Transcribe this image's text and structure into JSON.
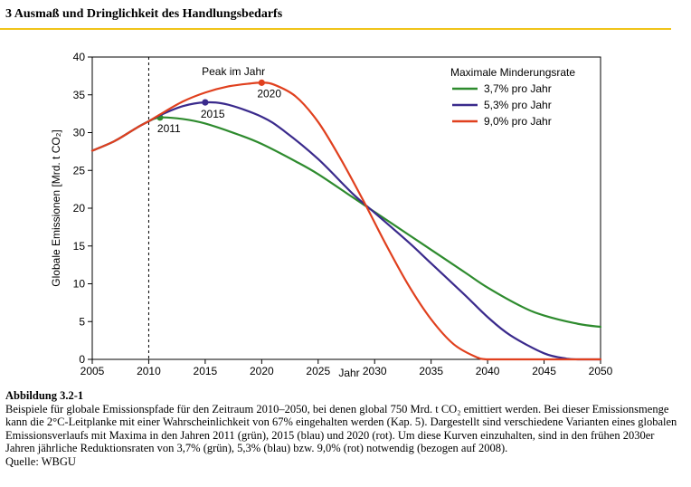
{
  "header": {
    "title": "3  Ausmaß und Dringlichkeit des Handlungsbedarfs",
    "accent_color": "#f0c419"
  },
  "chart_data": {
    "type": "line",
    "xlabel": "Jahr",
    "ylabel": "Globale Emissionen [Mrd. t CO₂]",
    "xlim": [
      2005,
      2050
    ],
    "ylim": [
      0,
      40
    ],
    "x_ticks": [
      2005,
      2010,
      2015,
      2020,
      2025,
      2030,
      2035,
      2040,
      2045,
      2050
    ],
    "y_ticks": [
      0,
      5,
      10,
      15,
      20,
      25,
      30,
      35,
      40
    ],
    "grid": false,
    "reference_line": {
      "x": 2010,
      "style": "dashed"
    },
    "annotation": "Peak im Jahr",
    "legend": {
      "title": "Maximale Minderungsrate",
      "placement": "top-right"
    },
    "series": [
      {
        "name": "3,7% pro Jahr",
        "color": "#2e8b2e",
        "peak": {
          "x": 2011,
          "y": 32.0,
          "label": "2011"
        },
        "x": [
          2005,
          2007,
          2009,
          2010,
          2011,
          2013,
          2015,
          2018,
          2020,
          2023,
          2025,
          2028,
          2030,
          2033,
          2035,
          2038,
          2040,
          2043,
          2045,
          2048,
          2050
        ],
        "y": [
          27.6,
          28.9,
          30.7,
          31.5,
          32.0,
          31.8,
          31.2,
          29.7,
          28.5,
          26.2,
          24.5,
          21.5,
          19.5,
          16.5,
          14.5,
          11.5,
          9.5,
          7.0,
          5.8,
          4.7,
          4.3
        ]
      },
      {
        "name": "5,3% pro Jahr",
        "color": "#3a2a8c",
        "peak": {
          "x": 2015,
          "y": 34.0,
          "label": "2015"
        },
        "x": [
          2005,
          2007,
          2009,
          2010,
          2011,
          2013,
          2015,
          2017,
          2020,
          2022,
          2025,
          2028,
          2030,
          2033,
          2035,
          2038,
          2040,
          2042,
          2045,
          2047,
          2048,
          2050
        ],
        "y": [
          27.6,
          28.9,
          30.7,
          31.5,
          32.3,
          33.5,
          34.0,
          33.7,
          32.1,
          30.2,
          26.5,
          22.0,
          19.4,
          15.5,
          12.7,
          8.5,
          5.6,
          3.2,
          0.8,
          0.1,
          0,
          0
        ]
      },
      {
        "name": "9,0% pro Jahr",
        "color": "#e0401e",
        "peak": {
          "x": 2020,
          "y": 36.6,
          "label": "2020"
        },
        "x": [
          2005,
          2007,
          2009,
          2010,
          2011,
          2013,
          2015,
          2017,
          2019,
          2020,
          2021,
          2023,
          2025,
          2027,
          2029,
          2031,
          2033,
          2035,
          2037,
          2039,
          2040,
          2042,
          2050
        ],
        "y": [
          27.6,
          28.9,
          30.7,
          31.5,
          32.4,
          34.1,
          35.3,
          36.1,
          36.5,
          36.6,
          36.4,
          34.8,
          31.4,
          26.5,
          21.0,
          15.2,
          9.8,
          5.3,
          2.0,
          0.3,
          0,
          0,
          0
        ]
      }
    ]
  },
  "caption": {
    "label": "Abbildung 3.2-1",
    "text": "Beispiele für globale Emissionspfade für den Zeitraum 2010–2050, bei denen global 750 Mrd. t CO₂ emittiert werden. Bei dieser Emissionsmenge kann die 2°C-Leitplanke mit einer Wahrscheinlichkeit von 67% eingehalten werden (Kap. 5). Dargestellt sind verschiedene Varianten eines globalen Emissionsverlaufs mit Maxima in den Jahren 2011 (grün), 2015 (blau) und 2020 (rot). Um diese Kurven einzuhalten, sind in den frühen 2030er Jahren jährliche Reduktionsraten von 3,7% (grün), 5,3% (blau) bzw. 9,0% (rot) notwendig (bezogen auf 2008).",
    "source": "Quelle: WBGU"
  }
}
